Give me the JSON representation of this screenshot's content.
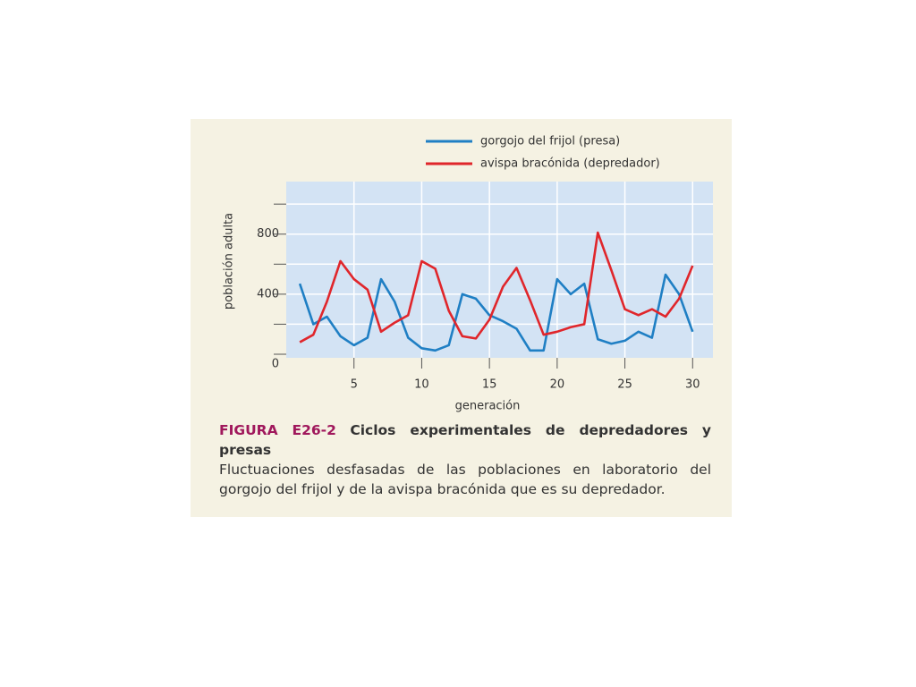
{
  "chart_data": {
    "type": "line",
    "x_label": "generación",
    "y_label": "población adulta",
    "x": [
      1,
      2,
      3,
      4,
      5,
      6,
      7,
      8,
      9,
      10,
      11,
      12,
      13,
      14,
      15,
      16,
      17,
      18,
      19,
      20,
      21,
      22,
      23,
      24,
      25,
      26,
      27,
      28,
      29,
      30
    ],
    "series": [
      {
        "name": "gorgojo del frijol (presa)",
        "color": "#1f7fc4",
        "values": [
          470,
          200,
          250,
          120,
          60,
          110,
          500,
          350,
          110,
          40,
          25,
          60,
          400,
          370,
          260,
          220,
          170,
          25,
          25,
          500,
          400,
          470,
          100,
          70,
          90,
          150,
          110,
          530,
          400,
          150
        ]
      },
      {
        "name": "avispa bracónida (depredador)",
        "color": "#e0262b",
        "values": [
          80,
          130,
          350,
          620,
          500,
          430,
          150,
          210,
          260,
          620,
          570,
          290,
          120,
          105,
          230,
          450,
          575,
          360,
          130,
          150,
          180,
          200,
          810,
          560,
          300,
          260,
          300,
          250,
          370,
          590
        ]
      }
    ],
    "xlim": [
      0,
      31.5
    ],
    "xticks": [
      5,
      10,
      15,
      20,
      25,
      30
    ],
    "ylim": [
      0,
      1150
    ],
    "yticks": [
      0,
      400,
      800
    ],
    "yminor_ticks": [
      200,
      600,
      1000
    ],
    "grid": true,
    "caption": {
      "figure": "FIGURA E26-2",
      "title": "Ciclos experimentales de depredadores y presas",
      "text": "Fluctuaciones desfasadas de las poblaciones en laboratorio del gorgojo del frijol y de la avispa bracónida que es su depredador."
    }
  }
}
